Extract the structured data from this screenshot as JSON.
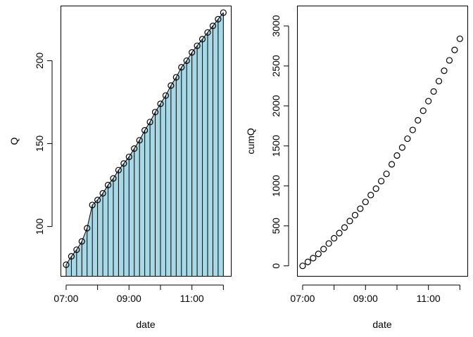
{
  "chart_data": [
    {
      "type": "area",
      "panel": "left",
      "xlabel": "date",
      "ylabel": "Q",
      "x_ticks": [
        "07:00",
        "09:00",
        "11:00"
      ],
      "y_ticks": [
        100,
        150,
        200
      ],
      "xlim": [
        "06:50",
        "12:15"
      ],
      "ylim": [
        70,
        233
      ],
      "fill_color": "#A6D8E6",
      "grid": false,
      "series": [
        {
          "x": [
            "07:00",
            "07:10",
            "07:20",
            "07:30",
            "07:40",
            "07:50",
            "08:00",
            "08:10",
            "08:20",
            "08:30",
            "08:40",
            "08:50",
            "09:00",
            "09:10",
            "09:20",
            "09:30",
            "09:40",
            "09:50",
            "10:00",
            "10:10",
            "10:20",
            "10:30",
            "10:40",
            "10:50",
            "11:00",
            "11:10",
            "11:20",
            "11:30",
            "11:40",
            "11:50",
            "12:00"
          ],
          "values": [
            77,
            82,
            86,
            91,
            99,
            113,
            116,
            120,
            125,
            129,
            134,
            138,
            142,
            147,
            152,
            158,
            163,
            169,
            174,
            179,
            185,
            190,
            196,
            200,
            205,
            209,
            213,
            217,
            221,
            225,
            229
          ]
        }
      ]
    },
    {
      "type": "scatter",
      "panel": "right",
      "xlabel": "date",
      "ylabel": "cumQ",
      "x_ticks": [
        "07:00",
        "09:00",
        "11:00"
      ],
      "y_ticks": [
        0,
        500,
        1000,
        1500,
        2000,
        2500,
        3000
      ],
      "xlim": [
        "06:50",
        "12:15"
      ],
      "ylim": [
        -130,
        3250
      ],
      "grid": false,
      "series": [
        {
          "x": [
            "07:00",
            "07:10",
            "07:20",
            "07:30",
            "07:40",
            "07:50",
            "08:00",
            "08:10",
            "08:20",
            "08:30",
            "08:40",
            "08:50",
            "09:00",
            "09:10",
            "09:20",
            "09:30",
            "09:40",
            "09:50",
            "10:00",
            "10:10",
            "10:20",
            "10:30",
            "10:40",
            "10:50",
            "11:00",
            "11:10",
            "11:20",
            "11:30",
            "11:40",
            "11:50",
            "12:00"
          ],
          "values": [
            0,
            50,
            97,
            150,
            210,
            280,
            345,
            410,
            480,
            560,
            635,
            715,
            800,
            885,
            965,
            1060,
            1150,
            1270,
            1380,
            1480,
            1590,
            1700,
            1820,
            1940,
            2060,
            2180,
            2310,
            2440,
            2570,
            2700,
            2840
          ]
        }
      ]
    }
  ]
}
